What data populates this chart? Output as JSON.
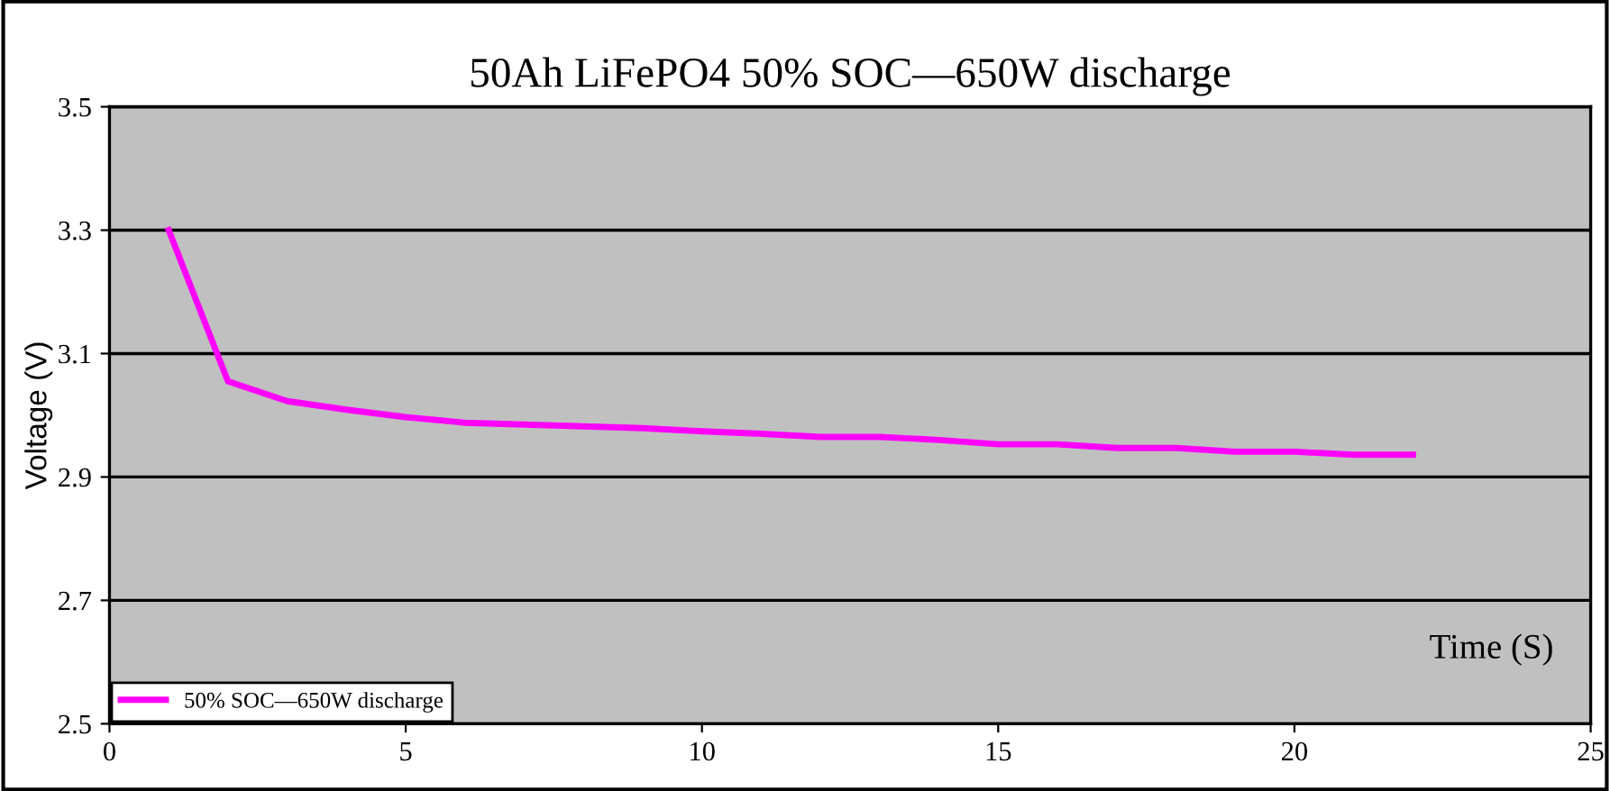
{
  "chart_data": {
    "type": "line",
    "title": "50Ah LiFePO4 50% SOC—650W discharge",
    "xlabel": "Time (S)",
    "ylabel": "Voltage (V)",
    "x": [
      1,
      2,
      3,
      4,
      5,
      6,
      7,
      8,
      9,
      10,
      11,
      12,
      13,
      14,
      15,
      16,
      17,
      18,
      19,
      20,
      21,
      22
    ],
    "series": [
      {
        "name": "50% SOC—650W discharge",
        "color": "#ff00ff",
        "values": [
          3.3,
          3.055,
          3.023,
          3.009,
          2.997,
          2.988,
          2.985,
          2.982,
          2.979,
          2.974,
          2.97,
          2.965,
          2.965,
          2.96,
          2.953,
          2.953,
          2.947,
          2.947,
          2.941,
          2.941,
          2.936,
          2.936
        ]
      }
    ],
    "xlim": [
      0,
      25
    ],
    "xticks": [
      0,
      5,
      10,
      15,
      20,
      25
    ],
    "ylim": [
      2.5,
      3.5
    ],
    "yticks": [
      2.5,
      2.7,
      2.9,
      3.1,
      3.3,
      3.5
    ],
    "grid": "y",
    "legend": "bottom left",
    "marker": "none",
    "line_style": "solid"
  }
}
